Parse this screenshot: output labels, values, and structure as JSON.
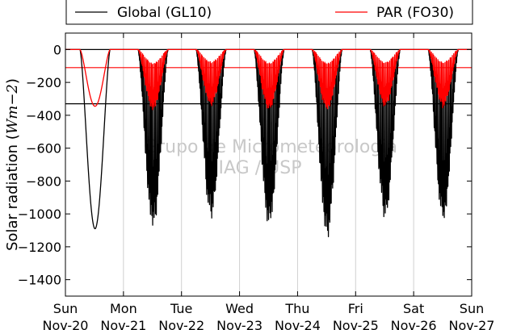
{
  "chart_data": {
    "type": "line",
    "ylabel_text": "Solar radiation (",
    "ylabel_unit": "Wm−2",
    "ylabel_close": ")",
    "ylim": [
      -1500,
      100
    ],
    "yticks": [
      0,
      -200,
      -400,
      -600,
      -800,
      -1000,
      -1200,
      -1400
    ],
    "ytick_labels": [
      "0",
      "−200",
      "−400",
      "−600",
      "−800",
      "−1000",
      "−1200",
      "−1400"
    ],
    "xlim": [
      0,
      7
    ],
    "xticks": [
      0,
      1,
      2,
      3,
      4,
      5,
      6,
      7
    ],
    "xtick_labels": [
      [
        "Sun",
        "Nov-20"
      ],
      [
        "Mon",
        "Nov-21"
      ],
      [
        "Tue",
        "Nov-22"
      ],
      [
        "Wed",
        "Nov-23"
      ],
      [
        "Thu",
        "Nov-24"
      ],
      [
        "Fri",
        "Nov-25"
      ],
      [
        "Sat",
        "Nov-26"
      ],
      [
        "Sun",
        "Nov-27"
      ]
    ],
    "grid": true,
    "legend_position": "top (above plot)",
    "legend": [
      {
        "name": "Global (GL10)",
        "color": "#000000"
      },
      {
        "name": "PAR (FO30)",
        "color": "#ff0000"
      }
    ],
    "reference_lines": [
      {
        "y": 0,
        "color": "#000000"
      },
      {
        "y": -330,
        "color": "#000000"
      },
      {
        "y": -110,
        "color": "#ff0000"
      }
    ],
    "series": [
      {
        "name": "Global (GL10)",
        "color": "#000000",
        "daily_minimum": [
          -1090,
          -1090,
          -1030,
          -1090,
          -1140,
          -1030,
          -1050
        ],
        "daily_character": [
          "smooth",
          "broken",
          "broken",
          "broken",
          "broken",
          "broken",
          "broken"
        ]
      },
      {
        "name": "PAR (FO30)",
        "color": "#ff0000",
        "daily_minimum": [
          -345,
          -370,
          -340,
          -370,
          -370,
          -345,
          -345
        ],
        "daily_character": [
          "smooth",
          "broken",
          "broken",
          "broken",
          "broken",
          "broken",
          "broken"
        ]
      }
    ],
    "watermark": [
      "Grupo de Micrometeorologia",
      "IAG / USP"
    ]
  }
}
